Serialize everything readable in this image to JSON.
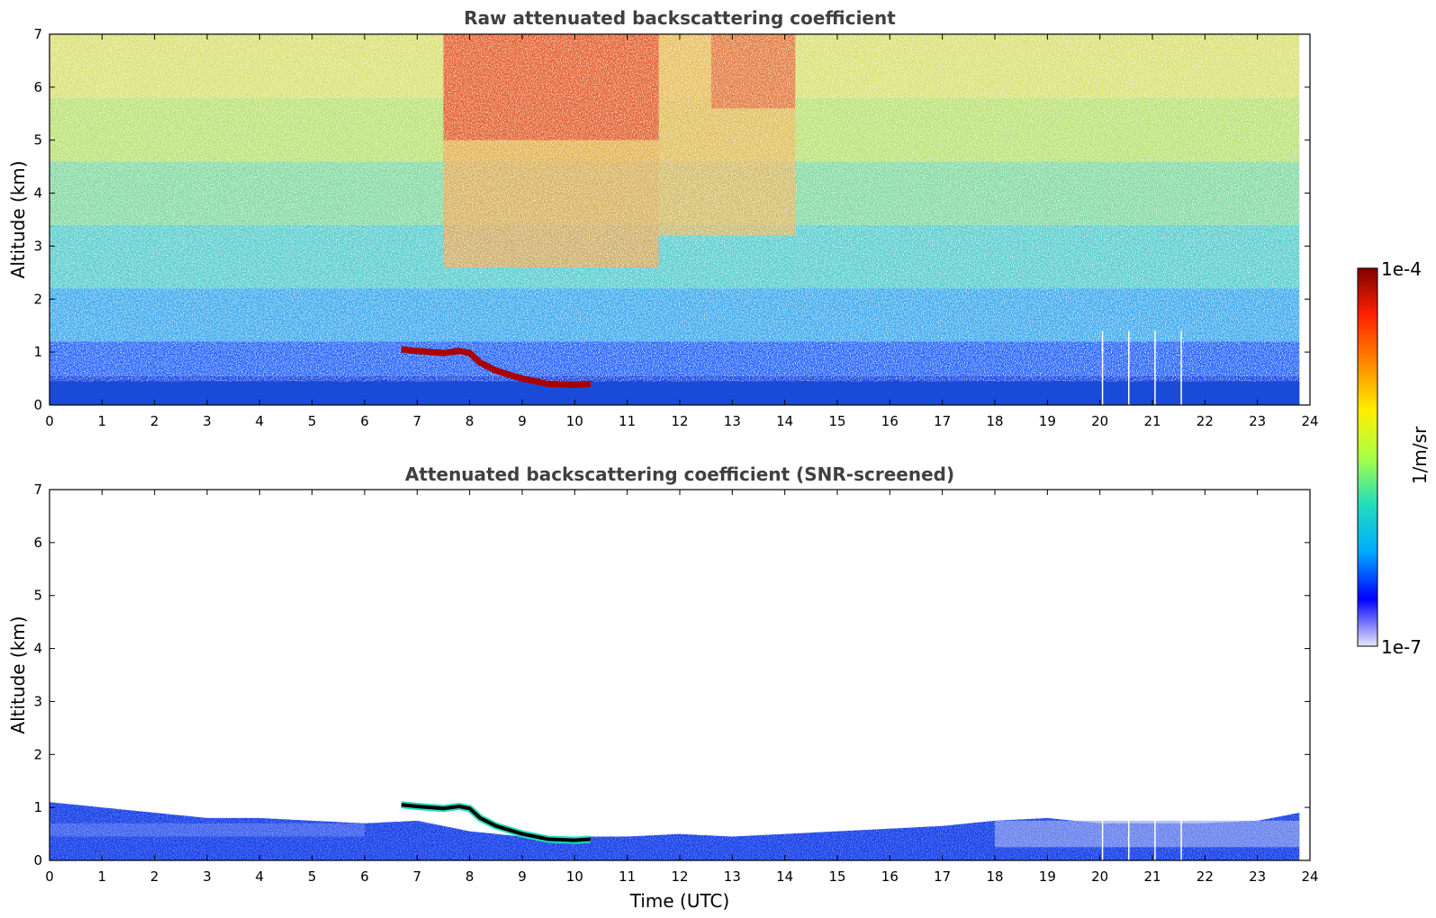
{
  "chart_data": [
    {
      "type": "heatmap",
      "title": "Raw attenuated backscattering coefficient",
      "xlabel": "",
      "ylabel": "Altitude (km)",
      "xlim": [
        0,
        24
      ],
      "ylim": [
        0,
        7
      ],
      "xticks": [
        "0",
        "1",
        "2",
        "3",
        "4",
        "5",
        "6",
        "7",
        "8",
        "9",
        "10",
        "11",
        "12",
        "13",
        "14",
        "15",
        "16",
        "17",
        "18",
        "19",
        "20",
        "21",
        "22",
        "23",
        "24"
      ],
      "yticks": [
        "0",
        "1",
        "2",
        "3",
        "4",
        "5",
        "6",
        "7"
      ],
      "grid": false,
      "data_end_hour": 23.8,
      "data_gaps_hours": [
        20.05,
        20.55,
        21.05,
        21.55
      ],
      "cloud_layer": {
        "time_hours": [
          6.7,
          7.0,
          7.5,
          7.8,
          8.0,
          8.2,
          8.5,
          9.0,
          9.5,
          10.0,
          10.3
        ],
        "altitude_km": [
          1.05,
          1.02,
          0.98,
          1.02,
          0.98,
          0.8,
          0.65,
          0.5,
          0.4,
          0.38,
          0.4
        ]
      }
    },
    {
      "type": "heatmap",
      "title": "Attenuated backscattering coefficient (SNR-screened)",
      "xlabel": "Time (UTC)",
      "ylabel": "Altitude (km)",
      "xlim": [
        0,
        24
      ],
      "ylim": [
        0,
        7
      ],
      "xticks": [
        "0",
        "1",
        "2",
        "3",
        "4",
        "5",
        "6",
        "7",
        "8",
        "9",
        "10",
        "11",
        "12",
        "13",
        "14",
        "15",
        "16",
        "17",
        "18",
        "19",
        "20",
        "21",
        "22",
        "23",
        "24"
      ],
      "yticks": [
        "0",
        "1",
        "2",
        "3",
        "4",
        "5",
        "6",
        "7"
      ],
      "grid": false,
      "data_end_hour": 23.8,
      "data_gaps_hours": [
        20.05,
        20.55,
        21.05,
        21.55
      ],
      "boundary_layer_top": {
        "time_hours": [
          0,
          1,
          2,
          3,
          4,
          5,
          6,
          7,
          8,
          9,
          10,
          11,
          12,
          13,
          14,
          15,
          16,
          17,
          18,
          19,
          20,
          21,
          22,
          23,
          23.8
        ],
        "altitude_km": [
          1.1,
          1.0,
          0.9,
          0.8,
          0.8,
          0.75,
          0.7,
          0.75,
          0.55,
          0.45,
          0.45,
          0.45,
          0.5,
          0.45,
          0.5,
          0.55,
          0.6,
          0.65,
          0.75,
          0.8,
          0.7,
          0.7,
          0.7,
          0.75,
          0.9
        ]
      }
    }
  ],
  "colorbar": {
    "label": "1/m/sr",
    "max_label": "1e-4",
    "min_label": "1e-7",
    "colors": [
      "#e8e8f8",
      "#0000ff",
      "#00aaff",
      "#22ddbb",
      "#aaff44",
      "#ffee00",
      "#ff8800",
      "#ff2200",
      "#800000"
    ]
  }
}
